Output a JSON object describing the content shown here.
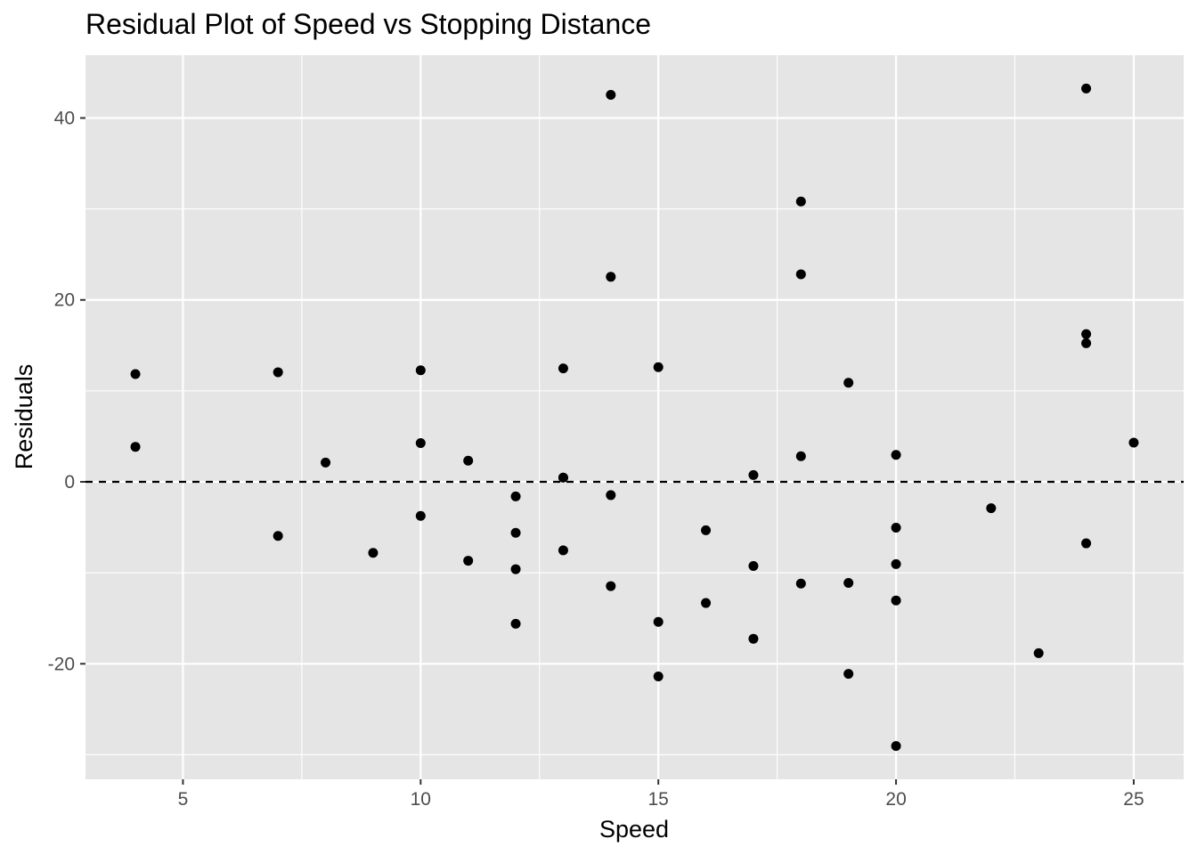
{
  "chart_data": {
    "type": "scatter",
    "title": "Residual Plot of Speed vs Stopping Distance",
    "xlabel": "Speed",
    "ylabel": "Residuals",
    "xlim": [
      2.95,
      26.05
    ],
    "ylim": [
      -32.7,
      46.9
    ],
    "x_ticks": [
      5,
      10,
      15,
      20,
      25
    ],
    "y_ticks": [
      -20,
      0,
      20,
      40
    ],
    "grid": true,
    "legend": "none",
    "reference_line": {
      "y": 0,
      "style": "dashed"
    },
    "colors": {
      "panel_background": "#e5e5e5",
      "grid": "#ffffff",
      "points": "#000000",
      "reference_line": "#000000",
      "tick_labels": "#4d4d4d"
    },
    "points": [
      {
        "x": 4,
        "y": 3.85
      },
      {
        "x": 4,
        "y": 11.85
      },
      {
        "x": 7,
        "y": -5.95
      },
      {
        "x": 7,
        "y": 12.05
      },
      {
        "x": 8,
        "y": 2.12
      },
      {
        "x": 9,
        "y": -7.81
      },
      {
        "x": 10,
        "y": -3.74
      },
      {
        "x": 10,
        "y": 4.26
      },
      {
        "x": 10,
        "y": 12.26
      },
      {
        "x": 11,
        "y": -8.67
      },
      {
        "x": 11,
        "y": 2.33
      },
      {
        "x": 12,
        "y": -15.6
      },
      {
        "x": 12,
        "y": -9.6
      },
      {
        "x": 12,
        "y": -5.6
      },
      {
        "x": 12,
        "y": -1.6
      },
      {
        "x": 13,
        "y": -7.53
      },
      {
        "x": 13,
        "y": 0.47
      },
      {
        "x": 13,
        "y": 0.47
      },
      {
        "x": 13,
        "y": 12.47
      },
      {
        "x": 14,
        "y": -11.46
      },
      {
        "x": 14,
        "y": -1.46
      },
      {
        "x": 14,
        "y": 22.54
      },
      {
        "x": 14,
        "y": 42.54
      },
      {
        "x": 15,
        "y": -21.39
      },
      {
        "x": 15,
        "y": -15.39
      },
      {
        "x": 15,
        "y": 12.61
      },
      {
        "x": 16,
        "y": -13.32
      },
      {
        "x": 16,
        "y": -5.32
      },
      {
        "x": 17,
        "y": -17.25
      },
      {
        "x": 17,
        "y": -9.25
      },
      {
        "x": 17,
        "y": 0.75
      },
      {
        "x": 18,
        "y": -11.18
      },
      {
        "x": 18,
        "y": 2.82
      },
      {
        "x": 18,
        "y": 22.82
      },
      {
        "x": 18,
        "y": 30.82
      },
      {
        "x": 19,
        "y": -21.11
      },
      {
        "x": 19,
        "y": -11.11
      },
      {
        "x": 19,
        "y": 10.89
      },
      {
        "x": 20,
        "y": -29.04
      },
      {
        "x": 20,
        "y": -13.04
      },
      {
        "x": 20,
        "y": -9.04
      },
      {
        "x": 20,
        "y": -5.04
      },
      {
        "x": 20,
        "y": 2.96
      },
      {
        "x": 22,
        "y": -2.9
      },
      {
        "x": 23,
        "y": -18.83
      },
      {
        "x": 24,
        "y": -6.76
      },
      {
        "x": 24,
        "y": 15.24
      },
      {
        "x": 24,
        "y": 16.24
      },
      {
        "x": 24,
        "y": 43.24
      },
      {
        "x": 25,
        "y": 4.31
      }
    ]
  }
}
